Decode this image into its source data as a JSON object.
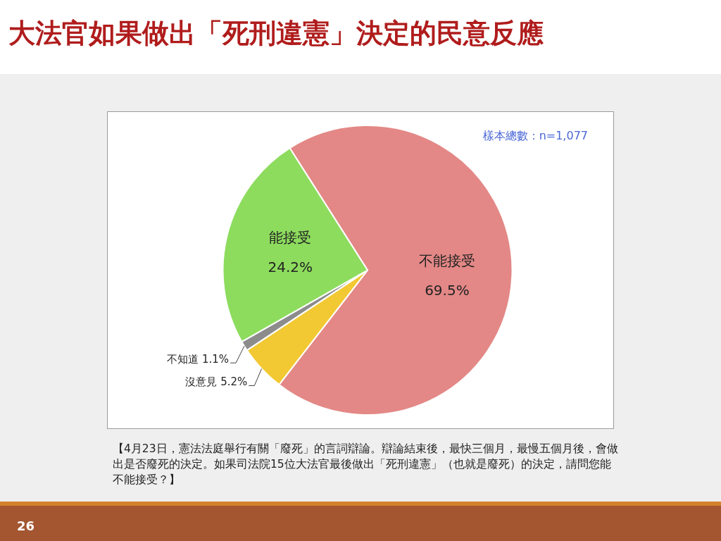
{
  "chart_data": {
    "type": "pie",
    "title": "大法官如果做出「死刑違憲」決定的民意反應",
    "categories": [
      "不能接受",
      "沒意見",
      "不知道",
      "能接受"
    ],
    "values": [
      69.5,
      5.2,
      1.1,
      24.2
    ],
    "colors": [
      "#e38886",
      "#f2c933",
      "#8c8c8c",
      "#8ddc5e"
    ],
    "value_labels": [
      "69.5%",
      "5.2%",
      "1.1%",
      "24.2%"
    ],
    "annotations": [
      "樣本總數：n=1,077",
      "【4月23日，憲法法庭舉行有關「廢死」的言詞辯論。辯論結束後，最快三個月，最慢五個月後，會做出是否廢死的決定。如果司法院15位大法官最後做出「死刑違憲」（也就是廢死）的決定，請問您能不能接受？】",
      "26"
    ],
    "legend": false
  }
}
